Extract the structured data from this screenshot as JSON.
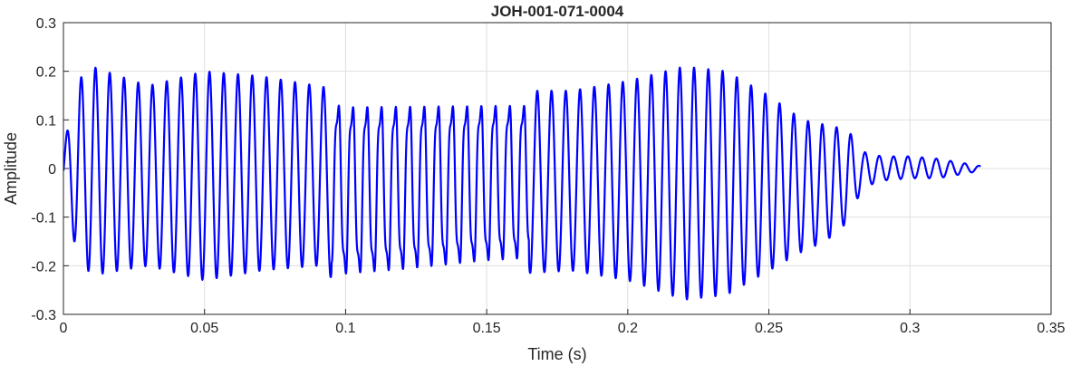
{
  "chart_data": {
    "type": "line",
    "title": "JOH-001-071-0004",
    "xlabel": "Time (s)",
    "ylabel": "Amplitude",
    "xlim": [
      0,
      0.35
    ],
    "ylim": [
      -0.3,
      0.3
    ],
    "xticks": [
      0,
      0.05,
      0.1,
      0.15,
      0.2,
      0.25,
      0.3,
      0.35
    ],
    "xtick_labels": [
      "0",
      "0.05",
      "0.1",
      "0.15",
      "0.2",
      "0.25",
      "0.3",
      "0.35"
    ],
    "yticks": [
      -0.3,
      -0.2,
      -0.1,
      0,
      0.1,
      0.2,
      0.3
    ],
    "ytick_labels": [
      "-0.3",
      "-0.2",
      "-0.1",
      "0",
      "0.1",
      "0.2",
      "0.3"
    ],
    "grid": true,
    "line_color": "#0000ff",
    "series": [
      {
        "signal_duration": 0.325,
        "approx_frequency_hz": 198,
        "envelope": {
          "t": [
            0,
            0.005,
            0.01,
            0.03,
            0.05,
            0.07,
            0.09,
            0.1,
            0.12,
            0.15,
            0.18,
            0.2,
            0.22,
            0.235,
            0.25,
            0.262,
            0.27,
            0.278,
            0.283,
            0.29,
            0.3,
            0.31,
            0.325
          ],
          "upper": [
            0.04,
            0.18,
            0.21,
            0.17,
            0.2,
            0.19,
            0.17,
            0.16,
            0.16,
            0.16,
            0.16,
            0.18,
            0.21,
            0.2,
            0.15,
            0.1,
            0.09,
            0.08,
            0.035,
            0.025,
            0.025,
            0.02,
            0.005
          ],
          "lower": [
            -0.05,
            -0.18,
            -0.22,
            -0.2,
            -0.23,
            -0.21,
            -0.2,
            -0.25,
            -0.24,
            -0.22,
            -0.21,
            -0.23,
            -0.27,
            -0.26,
            -0.21,
            -0.17,
            -0.15,
            -0.11,
            -0.04,
            -0.025,
            -0.02,
            -0.02,
            -0.005
          ]
        }
      }
    ]
  }
}
